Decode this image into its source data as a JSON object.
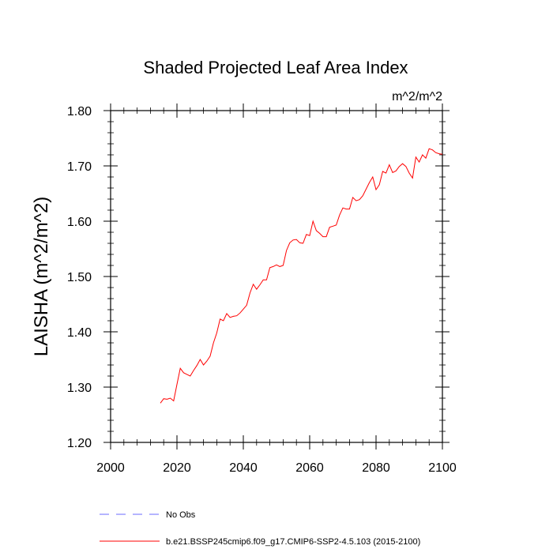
{
  "chart_data": {
    "type": "line",
    "title": "Shaded Projected Leaf Area Index",
    "units_label": "m^2/m^2",
    "xlabel": "",
    "ylabel": "LAISHA  (m^2/m^2)",
    "xlim": [
      2000,
      2100
    ],
    "ylim": [
      1.2,
      1.8
    ],
    "x_ticks": [
      2000,
      2020,
      2040,
      2060,
      2080,
      2100
    ],
    "x_tick_labels": [
      "2000",
      "2020",
      "2040",
      "2060",
      "2080",
      "2100"
    ],
    "y_ticks": [
      1.2,
      1.3,
      1.4,
      1.5,
      1.6,
      1.7,
      1.8
    ],
    "y_tick_labels": [
      "1.20",
      "1.30",
      "1.40",
      "1.50",
      "1.60",
      "1.70",
      "1.80"
    ],
    "x_minor_step": 4,
    "y_minor_step": 0.02,
    "grid": false,
    "legend_position": "bottom-left",
    "series": [
      {
        "name": "No Obs",
        "color": "#6b6bff",
        "dash": "dashed",
        "x": [],
        "y": []
      },
      {
        "name": "b.e21.BSSP245cmip6.f09_g17.CMIP6-SSP2-4.5.103 (2015-2100)",
        "color": "#ff0000",
        "dash": "solid",
        "x": [
          2015,
          2016,
          2017,
          2018,
          2019,
          2020,
          2021,
          2022,
          2023,
          2024,
          2025,
          2026,
          2027,
          2028,
          2029,
          2030,
          2031,
          2032,
          2033,
          2034,
          2035,
          2036,
          2037,
          2038,
          2039,
          2040,
          2041,
          2042,
          2043,
          2044,
          2045,
          2046,
          2047,
          2048,
          2049,
          2050,
          2051,
          2052,
          2053,
          2054,
          2055,
          2056,
          2057,
          2058,
          2059,
          2060,
          2061,
          2062,
          2063,
          2064,
          2065,
          2066,
          2067,
          2068,
          2069,
          2070,
          2071,
          2072,
          2073,
          2074,
          2075,
          2076,
          2077,
          2078,
          2079,
          2080,
          2081,
          2082,
          2083,
          2084,
          2085,
          2086,
          2087,
          2088,
          2089,
          2090,
          2091,
          2092,
          2093,
          2094,
          2095,
          2096,
          2097,
          2098,
          2099,
          2100
        ],
        "y": [
          1.271,
          1.279,
          1.278,
          1.28,
          1.275,
          1.305,
          1.334,
          1.326,
          1.323,
          1.32,
          1.33,
          1.339,
          1.35,
          1.34,
          1.347,
          1.356,
          1.38,
          1.398,
          1.423,
          1.42,
          1.433,
          1.426,
          1.428,
          1.429,
          1.434,
          1.441,
          1.448,
          1.47,
          1.486,
          1.477,
          1.485,
          1.494,
          1.494,
          1.516,
          1.518,
          1.521,
          1.518,
          1.52,
          1.547,
          1.561,
          1.566,
          1.567,
          1.561,
          1.56,
          1.576,
          1.574,
          1.6,
          1.583,
          1.578,
          1.572,
          1.572,
          1.589,
          1.591,
          1.593,
          1.611,
          1.624,
          1.622,
          1.622,
          1.643,
          1.637,
          1.639,
          1.646,
          1.658,
          1.67,
          1.68,
          1.657,
          1.666,
          1.69,
          1.687,
          1.702,
          1.688,
          1.691,
          1.699,
          1.704,
          1.699,
          1.687,
          1.678,
          1.716,
          1.707,
          1.72,
          1.714,
          1.731,
          1.729,
          1.724,
          1.722,
          1.721
        ]
      }
    ]
  }
}
